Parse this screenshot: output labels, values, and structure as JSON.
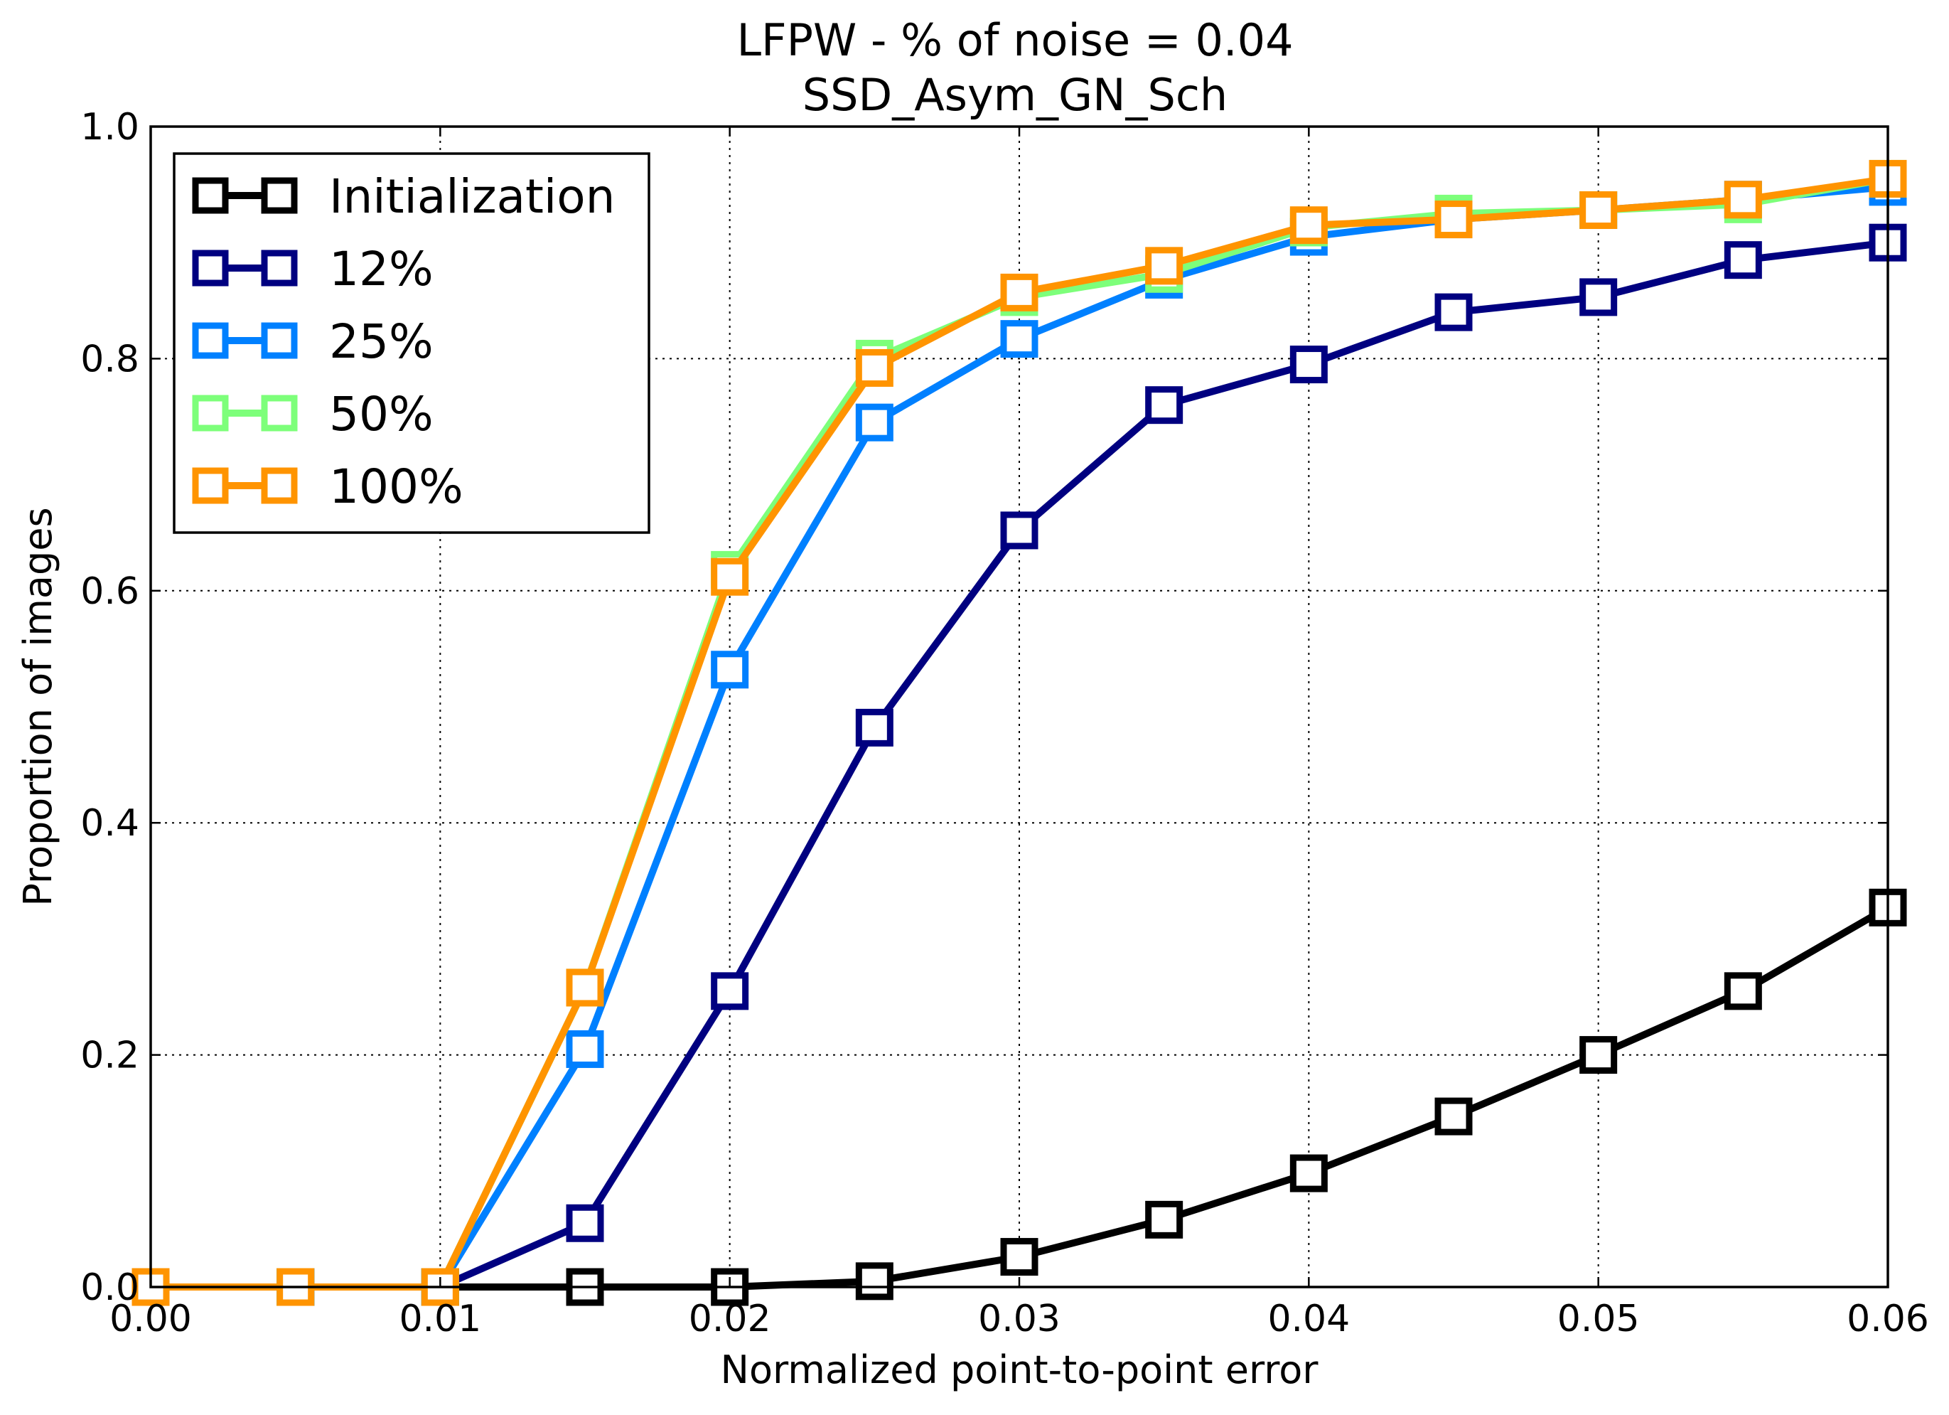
{
  "chart_data": {
    "type": "line",
    "title": "LFPW - % of noise = 0.04",
    "subtitle": "SSD_Asym_GN_Sch",
    "xlabel": "Normalized point-to-point error",
    "ylabel": "Proportion of images",
    "xlim": [
      0,
      0.06
    ],
    "ylim": [
      0,
      1.0
    ],
    "xticks": [
      "0.00",
      "0.01",
      "0.02",
      "0.03",
      "0.04",
      "0.05",
      "0.06"
    ],
    "yticks": [
      "0.0",
      "0.2",
      "0.4",
      "0.6",
      "0.8",
      "1.0"
    ],
    "grid": true,
    "legend_position": "top-left",
    "marker": "square",
    "x": [
      0.0,
      0.005,
      0.01,
      0.015,
      0.02,
      0.025,
      0.03,
      0.035,
      0.04,
      0.045,
      0.05,
      0.055,
      0.06
    ],
    "series": [
      {
        "name": "Initialization",
        "color": "#000000",
        "values": [
          0.0,
          0.0,
          0.0,
          0.0,
          0.0,
          0.005,
          0.026,
          0.058,
          0.098,
          0.147,
          0.2,
          0.255,
          0.327
        ]
      },
      {
        "name": "12%",
        "color": "#000080",
        "values": [
          0.0,
          0.0,
          0.0,
          0.055,
          0.255,
          0.482,
          0.652,
          0.76,
          0.795,
          0.84,
          0.853,
          0.885,
          0.9
        ]
      },
      {
        "name": "25%",
        "color": "#0080ff",
        "values": [
          0.0,
          0.0,
          0.0,
          0.205,
          0.532,
          0.745,
          0.817,
          0.868,
          0.905,
          0.92,
          0.928,
          0.937,
          0.948
        ]
      },
      {
        "name": "50%",
        "color": "#7dff7a",
        "values": [
          0.0,
          0.0,
          0.0,
          0.258,
          0.618,
          0.8,
          0.853,
          0.873,
          0.913,
          0.925,
          0.928,
          0.933,
          0.955
        ]
      },
      {
        "name": "100%",
        "color": "#ff9400",
        "values": [
          0.0,
          0.0,
          0.0,
          0.258,
          0.612,
          0.792,
          0.857,
          0.88,
          0.915,
          0.92,
          0.928,
          0.937,
          0.955
        ]
      }
    ]
  }
}
